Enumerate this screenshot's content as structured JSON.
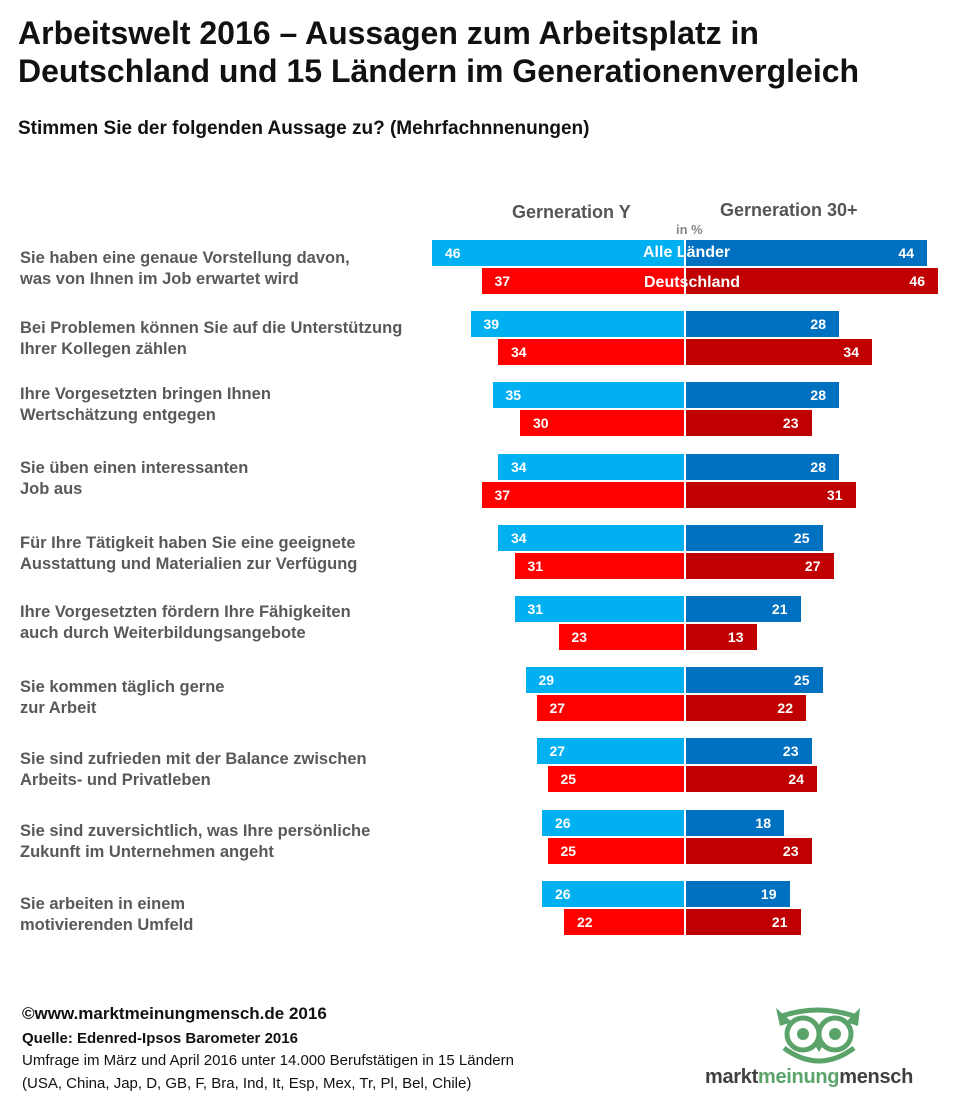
{
  "title": "Arbeitswelt 2016 – Aussagen zum Arbeitsplatz in Deutschland und 15 Ländern im Generationenvergleich",
  "subtitle": "Stimmen Sie der folgenden Aussage zu? (Mehrfachnnenungen)",
  "unit": "in %",
  "colors": {
    "gen_y_alle": "#00b0f0",
    "gen_y_de": "#ff0000",
    "gen_30_alle": "#0070c0",
    "gen_30_de": "#c00000"
  },
  "chart_data": {
    "type": "bar",
    "orientation": "horizontal-butterfly",
    "groups": [
      "Gerneration Y",
      "Gerneration 30+"
    ],
    "legend": [
      "Alle Länder",
      "Deutschland"
    ],
    "categories": [
      [
        "Sie haben eine genaue Vorstellung davon,",
        "was von Ihnen im Job erwartet wird"
      ],
      [
        "Bei Problemen können Sie auf die Unterstützung",
        "Ihrer Kollegen zählen"
      ],
      [
        "Ihre Vorgesetzten bringen Ihnen",
        "Wertschätzung entgegen"
      ],
      [
        "Sie üben einen interessanten",
        "Job aus"
      ],
      [
        "Für Ihre Tätigkeit haben Sie eine geeignete",
        "Ausstattung und Materialien zur Verfügung"
      ],
      [
        "Ihre Vorgesetzten fördern Ihre Fähigkeiten",
        "auch durch Weiterbildungsangebote"
      ],
      [
        "Sie kommen täglich gerne",
        "zur Arbeit"
      ],
      [
        "Sie sind zufrieden mit der Balance zwischen",
        "Arbeits- und Privatleben"
      ],
      [
        "Sie sind zuversichtlich, was Ihre persönliche",
        "Zukunft im Unternehmen angeht"
      ],
      [
        "Sie arbeiten in einem",
        "motivierenden Umfeld"
      ]
    ],
    "series": [
      {
        "name": "Gerneration Y – Alle Länder",
        "values": [
          46,
          39,
          35,
          34,
          34,
          31,
          29,
          27,
          26,
          26
        ]
      },
      {
        "name": "Gerneration Y – Deutschland",
        "values": [
          37,
          34,
          30,
          37,
          31,
          23,
          27,
          25,
          25,
          22
        ]
      },
      {
        "name": "Gerneration 30+ – Alle Länder",
        "values": [
          44,
          28,
          28,
          28,
          25,
          21,
          25,
          23,
          18,
          19
        ]
      },
      {
        "name": "Gerneration 30+ – Deutschland",
        "values": [
          46,
          34,
          23,
          31,
          27,
          13,
          22,
          24,
          23,
          21
        ]
      }
    ]
  },
  "footer": {
    "copyright": "©www.marktmeinungmensch.de 2016",
    "source": "Quelle: Edenred-Ipsos Barometer 2016",
    "note1": "Umfrage im März und April 2016 unter 14.000 Berufstätigen in 15 Ländern",
    "note2": "(USA, China, Jap, D, GB, F, Bra, Ind, It, Esp, Mex, Tr, Pl, Bel, Chile)"
  },
  "logo": {
    "part1": "markt",
    "part2": "meinung",
    "part3": "mensch",
    "color_dark": "#404040",
    "color_green": "#5aa36a"
  }
}
